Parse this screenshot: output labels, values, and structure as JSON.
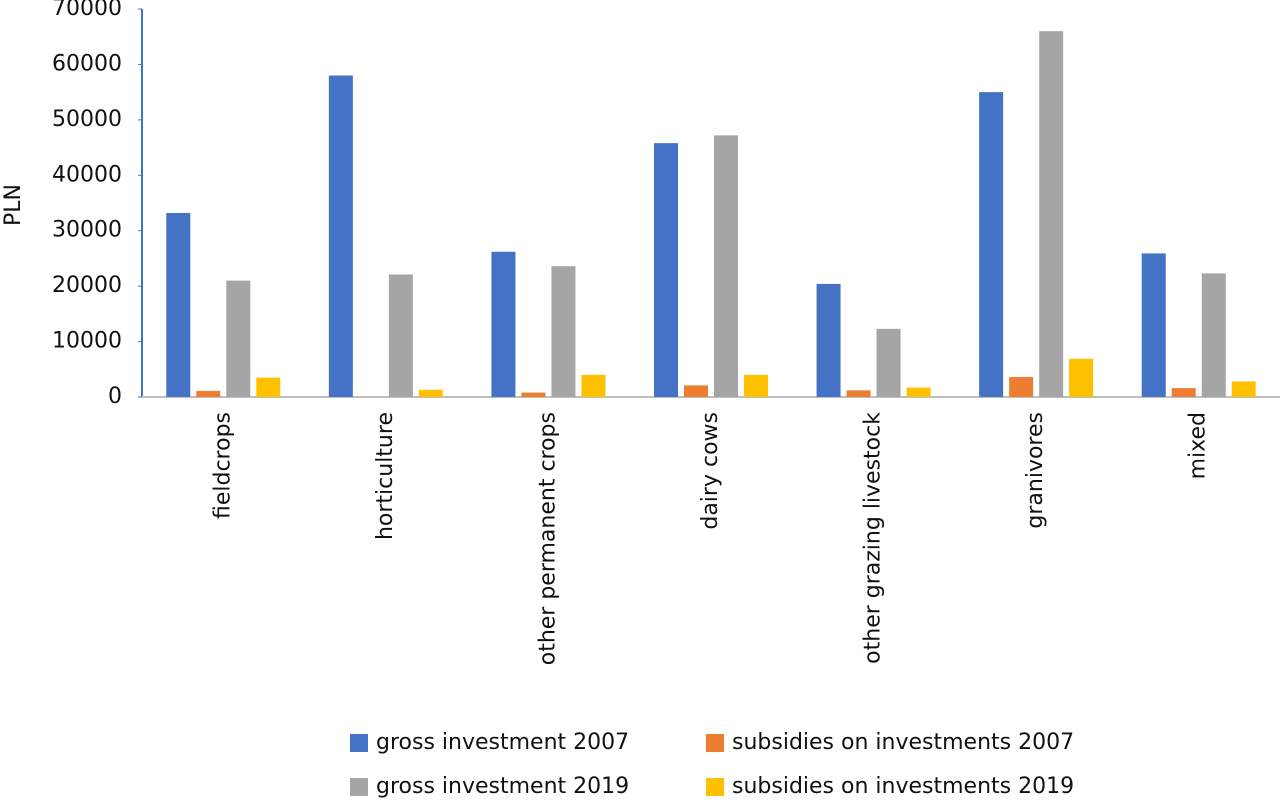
{
  "chart_data": {
    "type": "bar",
    "ylabel": "PLN",
    "categories": [
      "fieldcrops",
      "horticulture",
      "other permanent crops",
      "dairy cows",
      "other grazing livestock",
      "granivores",
      "mixed"
    ],
    "series": [
      {
        "name": "gross investment 2007",
        "color": "#4472c4",
        "values": [
          33200,
          58000,
          26200,
          45800,
          20400,
          55000,
          25900
        ]
      },
      {
        "name": "subsidies on investments 2007",
        "color": "#ed7d31",
        "values": [
          1100,
          0,
          800,
          2100,
          1200,
          3600,
          1600
        ]
      },
      {
        "name": "gross investment 2019",
        "color": "#a5a5a5",
        "values": [
          21000,
          22100,
          23600,
          47200,
          12300,
          66000,
          22300
        ]
      },
      {
        "name": "subsidies on investments 2019",
        "color": "#ffc000",
        "values": [
          3500,
          1300,
          4000,
          4000,
          1700,
          6900,
          2800
        ]
      }
    ],
    "ylim": [
      0,
      70000
    ],
    "yticks": [
      0,
      10000,
      20000,
      30000,
      40000,
      50000,
      60000,
      70000
    ],
    "grid": false,
    "legend": "bottom"
  }
}
